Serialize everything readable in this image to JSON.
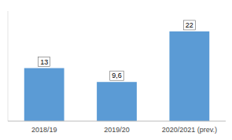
{
  "chart_data": {
    "type": "bar",
    "categories": [
      "2018/19",
      "2019/20",
      "2020/2021 (prev.)"
    ],
    "values": [
      13,
      9.6,
      22
    ],
    "value_labels": [
      "13",
      "9,6",
      "22"
    ],
    "color": "#5B9BD5",
    "ylim": [
      0,
      27
    ],
    "data_labels": true,
    "tick_labels": "x",
    "grid": false
  }
}
